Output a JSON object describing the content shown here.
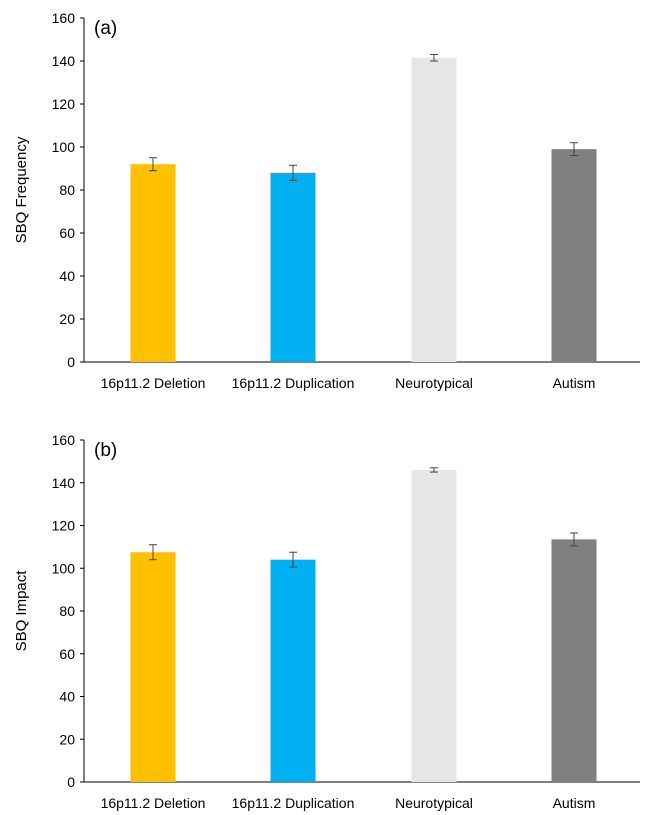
{
  "chart_data": [
    {
      "type": "bar",
      "panel_label": "(a)",
      "ylabel": "SBQ Frequency",
      "xlabel": "",
      "ylim": [
        0,
        160
      ],
      "yticks": [
        "0",
        "20",
        "40",
        "60",
        "80",
        "100",
        "120",
        "140",
        "160"
      ],
      "categories": [
        "16p11.2 Deletion",
        "16p11.2 Duplication",
        "Neurotypical",
        "Autism"
      ],
      "values": [
        92,
        88,
        141.5,
        99
      ],
      "errors": [
        3,
        3.5,
        1.5,
        3
      ],
      "colors": [
        "#FFC000",
        "#00B0F0",
        "#E6E6E6",
        "#808080"
      ],
      "grid": false
    },
    {
      "type": "bar",
      "panel_label": "(b)",
      "ylabel": "SBQ Impact",
      "xlabel": "",
      "ylim": [
        0,
        160
      ],
      "yticks": [
        "0",
        "20",
        "40",
        "60",
        "80",
        "100",
        "120",
        "140",
        "160"
      ],
      "categories": [
        "16p11.2 Deletion",
        "16p11.2 Duplication",
        "Neurotypical",
        "Autism"
      ],
      "values": [
        107.5,
        104,
        146,
        113.5
      ],
      "errors": [
        3.5,
        3.5,
        1,
        3
      ],
      "colors": [
        "#FFC000",
        "#00B0F0",
        "#E6E6E6",
        "#808080"
      ],
      "grid": false
    }
  ]
}
